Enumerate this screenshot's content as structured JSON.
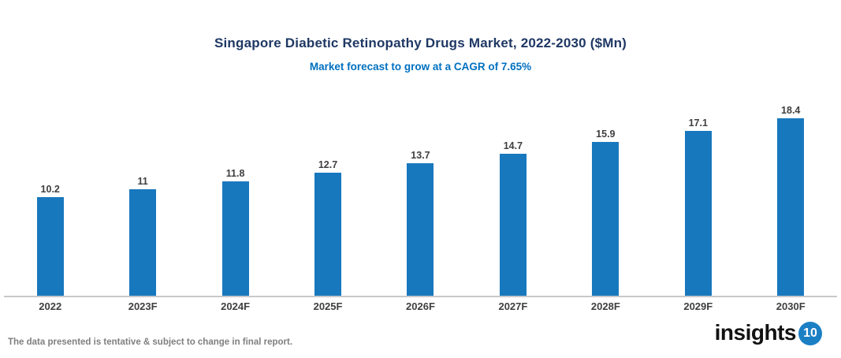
{
  "header": {
    "title": "Singapore Diabetic Retinopathy Drugs Market, 2022-2030 ($Mn)",
    "subtitle": "Market forecast to grow at a CAGR of 7.65%"
  },
  "chart_data": {
    "type": "bar",
    "title": "Singapore Diabetic Retinopathy Drugs Market, 2022-2030 ($Mn)",
    "subtitle": "Market forecast to grow at a CAGR of 7.65%",
    "categories": [
      "2022",
      "2023F",
      "2024F",
      "2025F",
      "2026F",
      "2027F",
      "2028F",
      "2029F",
      "2030F"
    ],
    "values": [
      10.2,
      11,
      11.8,
      12.7,
      13.7,
      14.7,
      15.9,
      17.1,
      18.4
    ],
    "xlabel": "",
    "ylabel": "",
    "ylim": [
      0,
      20
    ],
    "grid": false,
    "legend": "none",
    "value_labels_shown": true,
    "bar_color": "#1878BE"
  },
  "footer": {
    "disclaimer": "The data presented is tentative & subject to change in final report.",
    "logo_text": "insights",
    "logo_badge": "10"
  },
  "colors": {
    "title": "#1F3864",
    "subtitle": "#0070C0",
    "bar": "#1878BE",
    "value_label": "#3F3F3F",
    "axis_line": "#C8C8C8",
    "disclaimer": "#7F7F7F",
    "logo_badge_bg": "#1B7FC4"
  }
}
